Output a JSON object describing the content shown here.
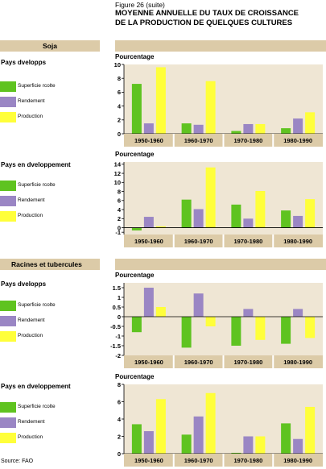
{
  "figure_label": "Figure 26 (suite)",
  "figure_title_1": "MOYENNE ANNUELLE DU TAUX DE CROISSANCE",
  "figure_title_2": "DE LA PRODUCTION DE QUELQUES CULTURES",
  "source": "Source: FAO",
  "colors": {
    "superficie": "#5fc320",
    "rendement": "#9a86c4",
    "production": "#ffff3a",
    "panel": "#efe6d4",
    "band": "#dccba8"
  },
  "sections": [
    {
      "title": "Soja"
    },
    {
      "title": "Racines et tubercules"
    }
  ],
  "legend": [
    "Superficie rcolte",
    "Rendement",
    "Production"
  ],
  "chart_data": [
    {
      "type": "bar",
      "section": "Soja",
      "title": "Pays dvelopps",
      "ylabel": "Pourcentage",
      "categories": [
        "1950-1960",
        "1960-1970",
        "1970-1980",
        "1980-1990"
      ],
      "yticks": [
        0,
        2,
        4,
        6,
        8,
        10
      ],
      "ylim": [
        0,
        10
      ],
      "series": [
        {
          "name": "Superficie rcolte",
          "values": [
            7.2,
            1.5,
            0.4,
            0.8
          ]
        },
        {
          "name": "Rendement",
          "values": [
            1.5,
            1.3,
            1.4,
            2.2
          ]
        },
        {
          "name": "Production",
          "values": [
            9.6,
            7.6,
            1.4,
            3.1
          ]
        }
      ]
    },
    {
      "type": "bar",
      "section": "Soja",
      "title": "Pays en dveloppement",
      "ylabel": "Pourcentage",
      "categories": [
        "1950-1960",
        "1960-1970",
        "1970-1980",
        "1980-1990"
      ],
      "yticks": [
        -1,
        0,
        2,
        4,
        6,
        8,
        10,
        12,
        14
      ],
      "ylim": [
        -1.5,
        14.5
      ],
      "series": [
        {
          "name": "Superficie rcolte",
          "values": [
            -0.6,
            6.2,
            5.1,
            3.8
          ]
        },
        {
          "name": "Rendement",
          "values": [
            2.4,
            4.1,
            2.0,
            2.6
          ]
        },
        {
          "name": "Production",
          "values": [
            0.3,
            13.3,
            8.1,
            6.3
          ]
        }
      ]
    },
    {
      "type": "bar",
      "section": "Racines et tubercules",
      "title": "Pays dvelopps",
      "ylabel": "Pourcentage",
      "categories": [
        "1950-1960",
        "1960-1970",
        "1970-1980",
        "1980-1990"
      ],
      "yticks": [
        -2,
        -1.5,
        -1,
        -0.5,
        0,
        0.5,
        1,
        1.5
      ],
      "ylim": [
        -2,
        1.75
      ],
      "series": [
        {
          "name": "Superficie rcolte",
          "values": [
            -0.8,
            -1.6,
            -1.5,
            -1.4
          ]
        },
        {
          "name": "Rendement",
          "values": [
            1.5,
            1.2,
            0.4,
            0.4
          ]
        },
        {
          "name": "Production",
          "values": [
            0.5,
            -0.5,
            -1.2,
            -1.1
          ]
        }
      ]
    },
    {
      "type": "bar",
      "section": "Racines et tubercules",
      "title": "Pays en dveloppement",
      "ylabel": "Pourcentage",
      "categories": [
        "1950-1960",
        "1960-1970",
        "1970-1980",
        "1980-1990"
      ],
      "yticks": [
        0,
        2,
        4,
        6,
        8
      ],
      "ylim": [
        0,
        8
      ],
      "series": [
        {
          "name": "Superficie rcolte",
          "values": [
            3.4,
            2.2,
            0.1,
            3.5
          ]
        },
        {
          "name": "Rendement",
          "values": [
            2.6,
            4.3,
            2.0,
            1.7
          ]
        },
        {
          "name": "Production",
          "values": [
            6.3,
            7.0,
            2.0,
            5.4
          ]
        }
      ]
    }
  ]
}
